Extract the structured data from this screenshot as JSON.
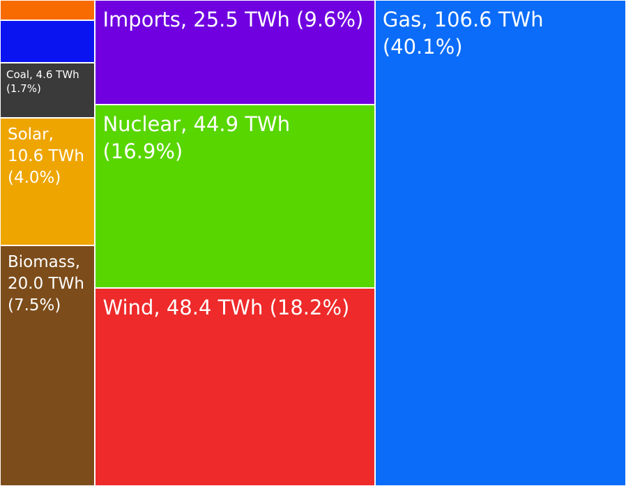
{
  "chart_data": {
    "type": "treemap",
    "values": [
      1.7,
      3.5,
      4.6,
      10.6,
      20.0,
      25.5,
      44.9,
      48.4,
      106.6
    ],
    "value_labels": [
      null,
      null,
      "Coal, 4.6 TWh (1.7%)",
      "Solar, 10.6 TWh (4.0%)",
      "Biomass, 20.0 TWh (7.5%)",
      "Imports, 25.5 TWh (9.6%)",
      "Nuclear, 44.9 TWh (16.9%)",
      "Wind, 48.4 TWh (18.2%)",
      "Gas, 106.6 TWh (40.1%)"
    ],
    "colors": [
      "#f76b00",
      "#0a14f0",
      "#3a3a3a",
      "#eea500",
      "#7c4c1a",
      "#7000e0",
      "#58d600",
      "#ee2a2a",
      "#0a6cf8"
    ]
  }
}
